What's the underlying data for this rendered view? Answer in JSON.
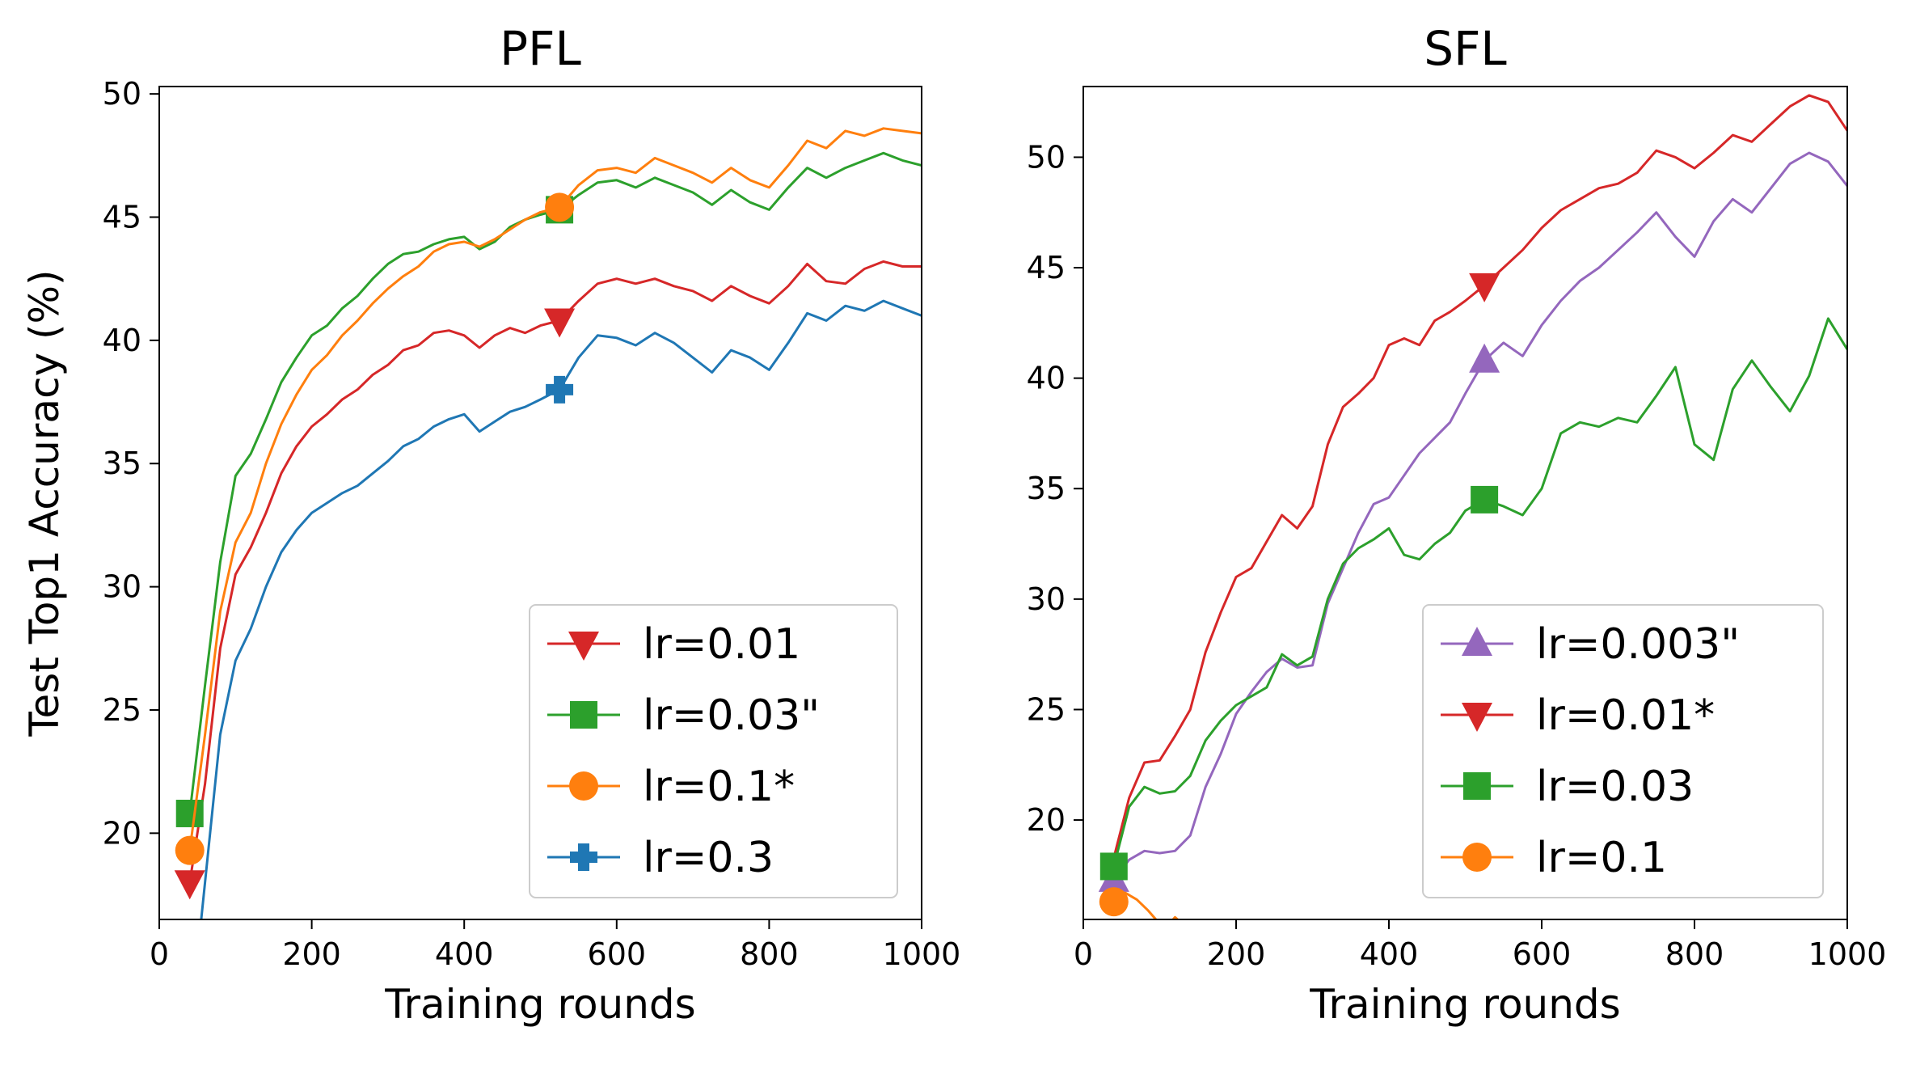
{
  "chart_data": [
    {
      "type": "line",
      "title": "PFL",
      "xlabel": "Training rounds",
      "ylabel": "Test Top1 Accuracy (%)",
      "xlim": [
        0,
        1000
      ],
      "ylim": [
        16.5,
        50.3
      ],
      "xticks": [
        0,
        200,
        400,
        600,
        800,
        1000
      ],
      "yticks": [
        20,
        25,
        30,
        35,
        40,
        45,
        50
      ],
      "grid": false,
      "legend": "lower-right",
      "series": [
        {
          "name": "lr=0.01",
          "color": "#d62728",
          "marker": "triangle-down",
          "markers_at": [
            40,
            525
          ],
          "x": [
            40,
            60,
            80,
            100,
            120,
            140,
            160,
            180,
            200,
            220,
            240,
            260,
            280,
            300,
            320,
            340,
            360,
            380,
            400,
            420,
            440,
            460,
            480,
            500,
            525,
            550,
            575,
            600,
            625,
            650,
            675,
            700,
            725,
            750,
            775,
            800,
            825,
            850,
            875,
            900,
            925,
            950,
            975,
            1000
          ],
          "y": [
            18.0,
            22.0,
            27.5,
            30.5,
            31.6,
            33.0,
            34.6,
            35.7,
            36.5,
            37.0,
            37.6,
            38.0,
            38.6,
            39.0,
            39.6,
            39.8,
            40.3,
            40.4,
            40.2,
            39.7,
            40.2,
            40.5,
            40.3,
            40.6,
            40.8,
            41.6,
            42.3,
            42.5,
            42.3,
            42.5,
            42.2,
            42.0,
            41.6,
            42.2,
            41.8,
            41.5,
            42.2,
            43.1,
            42.4,
            42.3,
            42.9,
            43.2,
            43.0,
            43.0
          ]
        },
        {
          "name": "lr=0.03\"",
          "color": "#2ca02c",
          "marker": "square",
          "markers_at": [
            40,
            525
          ],
          "x": [
            40,
            60,
            80,
            100,
            120,
            140,
            160,
            180,
            200,
            220,
            240,
            260,
            280,
            300,
            320,
            340,
            360,
            380,
            400,
            420,
            440,
            460,
            480,
            500,
            525,
            550,
            575,
            600,
            625,
            650,
            675,
            700,
            725,
            750,
            775,
            800,
            825,
            850,
            875,
            900,
            925,
            950,
            975,
            1000
          ],
          "y": [
            20.8,
            26.0,
            31.0,
            34.5,
            35.4,
            36.8,
            38.3,
            39.3,
            40.2,
            40.6,
            41.3,
            41.8,
            42.5,
            43.1,
            43.5,
            43.6,
            43.9,
            44.1,
            44.2,
            43.7,
            44.0,
            44.6,
            44.9,
            45.1,
            45.3,
            45.9,
            46.4,
            46.5,
            46.2,
            46.6,
            46.3,
            46.0,
            45.5,
            46.1,
            45.6,
            45.3,
            46.2,
            47.0,
            46.6,
            47.0,
            47.3,
            47.6,
            47.3,
            47.1
          ]
        },
        {
          "name": "lr=0.1*",
          "color": "#ff7f0e",
          "marker": "circle",
          "markers_at": [
            40,
            525
          ],
          "x": [
            40,
            60,
            80,
            100,
            120,
            140,
            160,
            180,
            200,
            220,
            240,
            260,
            280,
            300,
            320,
            340,
            360,
            380,
            400,
            420,
            440,
            460,
            480,
            500,
            525,
            550,
            575,
            600,
            625,
            650,
            675,
            700,
            725,
            750,
            775,
            800,
            825,
            850,
            875,
            900,
            925,
            950,
            975,
            1000
          ],
          "y": [
            19.3,
            24.0,
            29.0,
            31.8,
            33.0,
            35.0,
            36.6,
            37.8,
            38.8,
            39.4,
            40.2,
            40.8,
            41.5,
            42.1,
            42.6,
            43.0,
            43.6,
            43.9,
            44.0,
            43.8,
            44.1,
            44.5,
            44.9,
            45.2,
            45.4,
            46.3,
            46.9,
            47.0,
            46.8,
            47.4,
            47.1,
            46.8,
            46.4,
            47.0,
            46.5,
            46.2,
            47.1,
            48.1,
            47.8,
            48.5,
            48.3,
            48.6,
            48.5,
            48.4
          ]
        },
        {
          "name": "lr=0.3",
          "color": "#1f77b4",
          "marker": "plus",
          "markers_at": [
            525
          ],
          "x": [
            55,
            65,
            80,
            100,
            120,
            140,
            160,
            180,
            200,
            220,
            240,
            260,
            280,
            300,
            320,
            340,
            360,
            380,
            400,
            420,
            440,
            460,
            480,
            500,
            525,
            550,
            575,
            600,
            625,
            650,
            675,
            700,
            725,
            750,
            775,
            800,
            825,
            850,
            875,
            900,
            925,
            950,
            975,
            1000
          ],
          "y": [
            16.5,
            19.5,
            24.0,
            27.0,
            28.3,
            30.0,
            31.4,
            32.3,
            33.0,
            33.4,
            33.8,
            34.1,
            34.6,
            35.1,
            35.7,
            36.0,
            36.5,
            36.8,
            37.0,
            36.3,
            36.7,
            37.1,
            37.3,
            37.6,
            38.0,
            39.3,
            40.2,
            40.1,
            39.8,
            40.3,
            39.9,
            39.3,
            38.7,
            39.6,
            39.3,
            38.8,
            39.9,
            41.1,
            40.8,
            41.4,
            41.2,
            41.6,
            41.3,
            41.0
          ]
        }
      ]
    },
    {
      "type": "line",
      "title": "SFL",
      "xlabel": "Training rounds",
      "ylabel": "",
      "xlim": [
        0,
        1000
      ],
      "ylim": [
        15.5,
        53.2
      ],
      "xticks": [
        0,
        200,
        400,
        600,
        800,
        1000
      ],
      "yticks": [
        20,
        25,
        30,
        35,
        40,
        45,
        50
      ],
      "grid": false,
      "legend": "lower-right",
      "series": [
        {
          "name": "lr=0.003\"",
          "color": "#9467bd",
          "marker": "triangle-up",
          "markers_at": [
            40,
            525
          ],
          "x": [
            40,
            60,
            80,
            100,
            120,
            140,
            160,
            180,
            200,
            220,
            240,
            260,
            280,
            300,
            320,
            340,
            360,
            380,
            400,
            420,
            440,
            460,
            480,
            500,
            525,
            550,
            575,
            600,
            625,
            650,
            675,
            700,
            725,
            750,
            775,
            800,
            825,
            850,
            875,
            900,
            925,
            950,
            975,
            1000
          ],
          "y": [
            17.3,
            18.2,
            18.6,
            18.5,
            18.6,
            19.3,
            21.5,
            23.0,
            24.8,
            25.8,
            26.7,
            27.3,
            26.9,
            27.0,
            29.8,
            31.4,
            33.0,
            34.3,
            34.6,
            35.6,
            36.6,
            37.3,
            38.0,
            39.3,
            40.8,
            41.6,
            41.0,
            42.4,
            43.5,
            44.4,
            45.0,
            45.8,
            46.6,
            47.5,
            46.4,
            45.5,
            47.1,
            48.1,
            47.5,
            48.6,
            49.7,
            50.2,
            49.8,
            48.7
          ]
        },
        {
          "name": "lr=0.01*",
          "color": "#d62728",
          "marker": "triangle-down",
          "markers_at": [
            525
          ],
          "x": [
            40,
            60,
            80,
            100,
            120,
            140,
            160,
            180,
            200,
            220,
            240,
            260,
            280,
            300,
            320,
            340,
            360,
            380,
            400,
            420,
            440,
            460,
            480,
            500,
            525,
            550,
            575,
            600,
            625,
            650,
            675,
            700,
            725,
            750,
            775,
            800,
            825,
            850,
            875,
            900,
            925,
            950,
            975,
            1000
          ],
          "y": [
            18.3,
            21.0,
            22.6,
            22.7,
            23.8,
            25.0,
            27.6,
            29.4,
            31.0,
            31.4,
            32.6,
            33.8,
            33.2,
            34.2,
            37.0,
            38.7,
            39.3,
            40.0,
            41.5,
            41.8,
            41.5,
            42.6,
            43.0,
            43.5,
            44.2,
            45.0,
            45.8,
            46.8,
            47.6,
            48.1,
            48.6,
            48.8,
            49.3,
            50.3,
            50.0,
            49.5,
            50.2,
            51.0,
            50.7,
            51.5,
            52.3,
            52.8,
            52.5,
            51.2
          ]
        },
        {
          "name": "lr=0.03",
          "color": "#2ca02c",
          "marker": "square",
          "markers_at": [
            40,
            525
          ],
          "x": [
            40,
            60,
            80,
            100,
            120,
            140,
            160,
            180,
            200,
            220,
            240,
            260,
            280,
            300,
            320,
            340,
            360,
            380,
            400,
            420,
            440,
            460,
            480,
            500,
            525,
            550,
            575,
            600,
            625,
            650,
            675,
            700,
            725,
            750,
            775,
            800,
            825,
            850,
            875,
            900,
            925,
            950,
            975,
            1000
          ],
          "y": [
            17.9,
            20.6,
            21.5,
            21.2,
            21.3,
            22.0,
            23.6,
            24.5,
            25.2,
            25.6,
            26.0,
            27.5,
            27.0,
            27.4,
            30.0,
            31.6,
            32.3,
            32.7,
            33.2,
            32.0,
            31.8,
            32.5,
            33.0,
            34.0,
            34.5,
            34.2,
            33.8,
            35.0,
            37.5,
            38.0,
            37.8,
            38.2,
            38.0,
            39.2,
            40.5,
            37.0,
            36.3,
            39.5,
            40.8,
            39.6,
            38.5,
            40.1,
            42.7,
            41.3
          ]
        },
        {
          "name": "lr=0.1",
          "color": "#ff7f0e",
          "marker": "circle",
          "markers_at": [
            40
          ],
          "x": [
            40,
            55,
            70,
            85,
            95,
            110,
            120,
            130
          ],
          "y": [
            16.3,
            16.7,
            16.4,
            15.9,
            15.5,
            15.2,
            15.6,
            15.3
          ]
        }
      ]
    }
  ]
}
